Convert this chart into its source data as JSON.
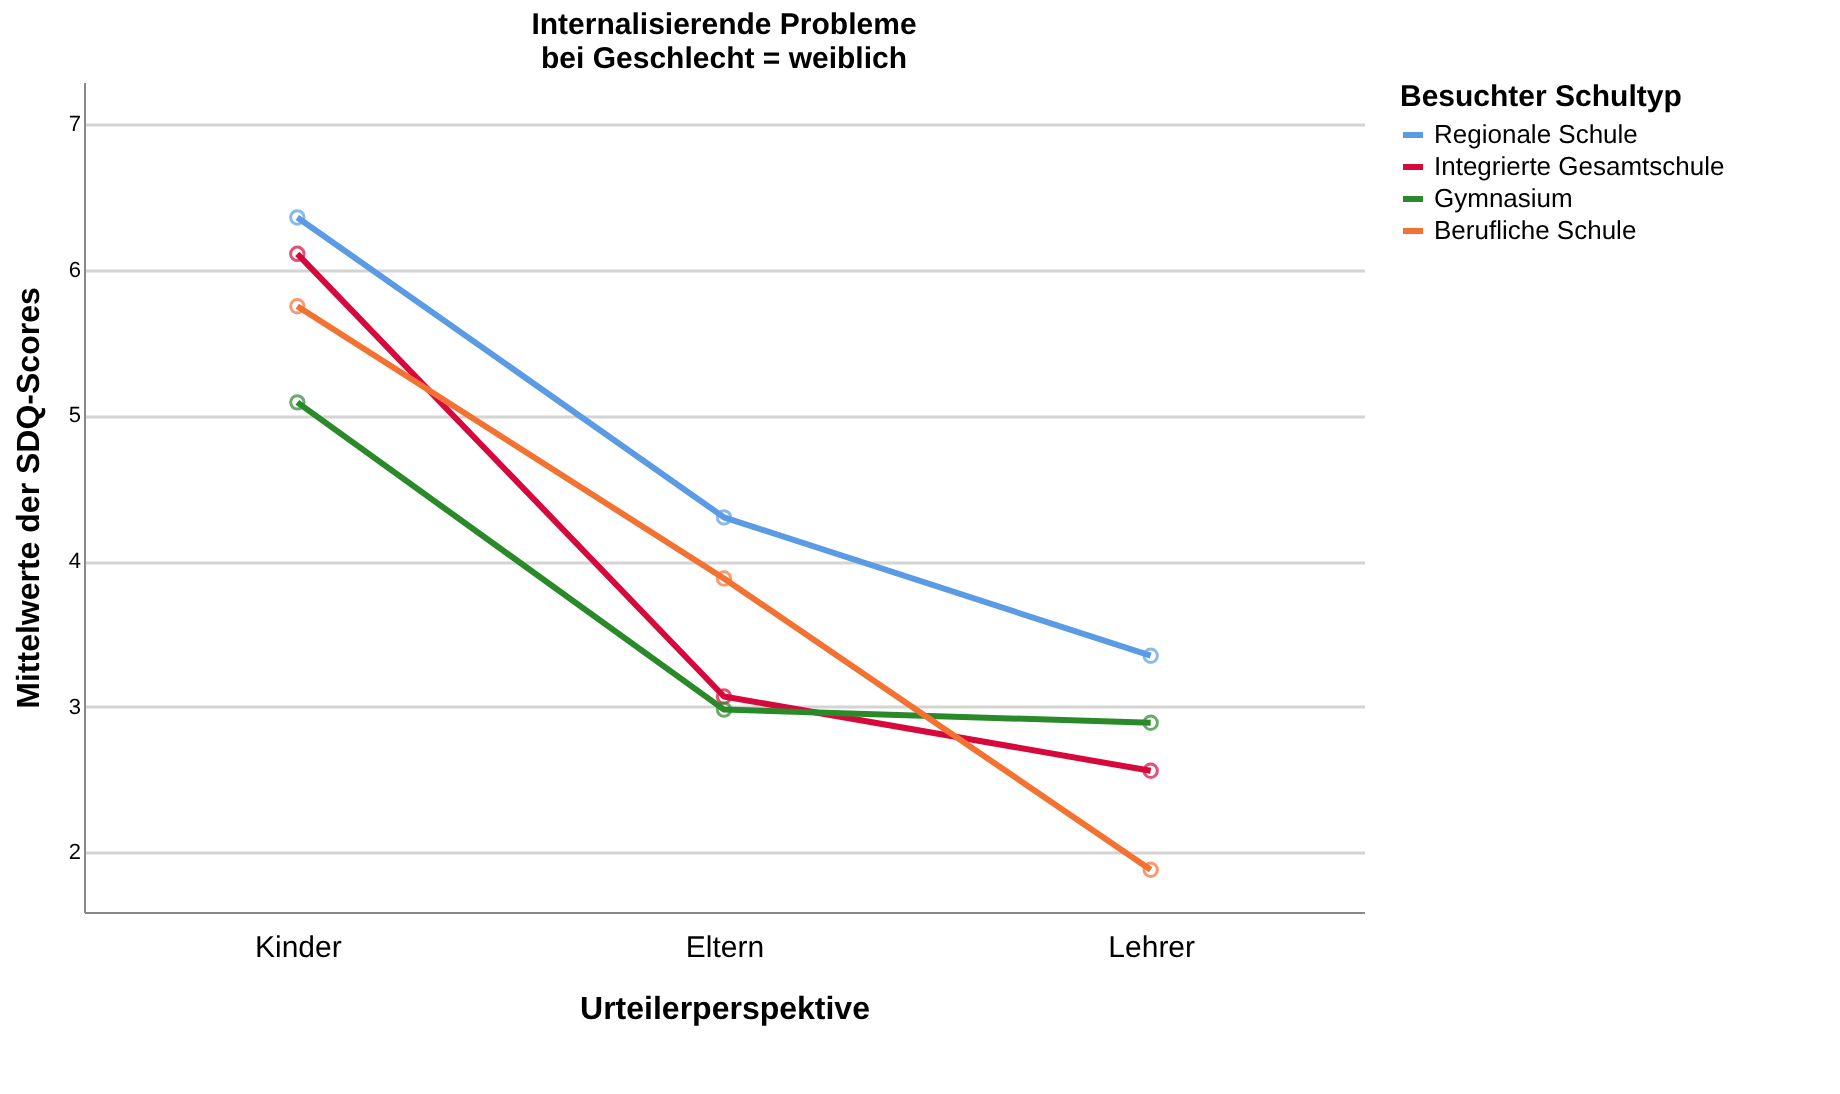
{
  "chart_data": {
    "type": "line",
    "title": [
      "Internalisierende Probleme",
      "bei Geschlecht = weiblich"
    ],
    "xlabel": "Urteilerperspektive",
    "ylabel": "Mittelwerte der SDQ-Scores",
    "legend_title": "Besuchter Schultyp",
    "categories": [
      "Kinder",
      "Eltern",
      "Lehrer"
    ],
    "series": [
      {
        "name": "Regionale Schule",
        "color": "#5b9be6",
        "values": [
          6.36,
          4.3,
          3.35
        ]
      },
      {
        "name": "Integrierte Gesamtschule",
        "color": "#d6083c",
        "values": [
          6.11,
          3.07,
          2.56
        ]
      },
      {
        "name": "Gymnasium",
        "color": "#2a8a2a",
        "values": [
          5.09,
          2.98,
          2.89
        ]
      },
      {
        "name": "Berufliche Schule",
        "color": "#f47231",
        "values": [
          5.75,
          3.88,
          1.88
        ]
      }
    ],
    "ylim": [
      1.59,
      7.29
    ],
    "yticks": [
      2,
      3,
      4,
      5,
      6,
      7
    ],
    "grid": "y",
    "legend": "top right",
    "marker": "circle",
    "line_style": "solid"
  }
}
